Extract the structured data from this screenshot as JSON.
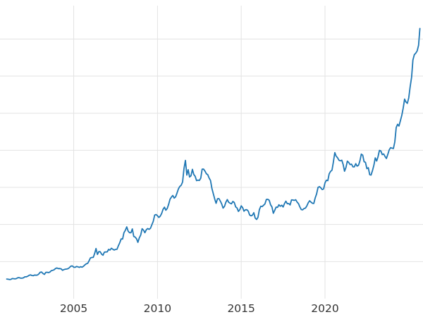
{
  "chart_data": {
    "type": "line",
    "title": "",
    "xlabel": "",
    "ylabel": "",
    "grid": true,
    "legend": "none",
    "x_range": [
      2000.6,
      2025.85
    ],
    "y_range": [
      0,
      3950
    ],
    "x_ticks": [
      {
        "value": 2005,
        "label": "2005"
      },
      {
        "value": 2010,
        "label": "2010"
      },
      {
        "value": 2015,
        "label": "2015"
      },
      {
        "value": 2020,
        "label": "2020"
      }
    ],
    "y_gridlines": [
      500,
      1000,
      1500,
      2000,
      2500,
      3000,
      3500
    ],
    "line_color": "#1f77b4",
    "grid_color": "#e3e3e3",
    "tick_label_color": "#333333",
    "series": [
      {
        "name": "value",
        "x_start": 2001.0,
        "x_step": 0.0833333,
        "values": [
          265,
          262,
          258,
          260,
          272,
          270,
          267,
          272,
          283,
          283,
          276,
          276,
          281,
          295,
          294,
          302,
          314,
          321,
          313,
          310,
          319,
          316,
          319,
          333,
          356,
          359,
          340,
          328,
          355,
          356,
          351,
          360,
          379,
          383,
          390,
          407,
          414,
          405,
          406,
          403,
          383,
          392,
          398,
          400,
          405,
          420,
          439,
          442,
          424,
          423,
          434,
          429,
          422,
          431,
          424,
          437,
          456,
          470,
          477,
          510,
          550,
          555,
          557,
          611,
          676,
          596,
          634,
          632,
          599,
          586,
          628,
          630,
          631,
          665,
          655,
          680,
          667,
          656,
          665,
          666,
          713,
          755,
          806,
          804,
          890,
          922,
          968,
          910,
          889,
          889,
          940,
          839,
          830,
          807,
          760,
          820,
          858,
          943,
          924,
          890,
          929,
          946,
          934,
          950,
          996,
          1043,
          1127,
          1135,
          1118,
          1095,
          1113,
          1149,
          1205,
          1233,
          1193,
          1216,
          1271,
          1342,
          1370,
          1391,
          1356,
          1373,
          1424,
          1480,
          1513,
          1529,
          1573,
          1756,
          1864,
          1666,
          1739,
          1640,
          1656,
          1743,
          1674,
          1650,
          1591,
          1598,
          1594,
          1626,
          1745,
          1747,
          1721,
          1684,
          1671,
          1627,
          1593,
          1485,
          1414,
          1343,
          1286,
          1347,
          1349,
          1316,
          1276,
          1221,
          1244,
          1300,
          1336,
          1299,
          1288,
          1279,
          1311,
          1296,
          1237,
          1223,
          1176,
          1200,
          1251,
          1227,
          1179,
          1198,
          1199,
          1181,
          1128,
          1117,
          1125,
          1159,
          1086,
          1068,
          1097,
          1200,
          1246,
          1242,
          1260,
          1277,
          1337,
          1340,
          1327,
          1266,
          1238,
          1152,
          1192,
          1234,
          1231,
          1266,
          1246,
          1260,
          1236,
          1283,
          1314,
          1280,
          1282,
          1264,
          1331,
          1330,
          1325,
          1334,
          1303,
          1281,
          1238,
          1201,
          1198,
          1215,
          1221,
          1250,
          1292,
          1320,
          1301,
          1286,
          1284,
          1359,
          1413,
          1500,
          1511,
          1495,
          1471,
          1479,
          1561,
          1597,
          1591,
          1683,
          1716,
          1732,
          1843,
          1969,
          1921,
          1900,
          1866,
          1858,
          1867,
          1811,
          1718,
          1768,
          1853,
          1835,
          1807,
          1814,
          1777,
          1777,
          1820,
          1787,
          1797,
          1856,
          1948,
          1934,
          1848,
          1837,
          1753,
          1765,
          1671,
          1666,
          1725,
          1797,
          1898,
          1855,
          1913,
          1999,
          1992,
          1942,
          1951,
          1918,
          1890,
          1946,
          2007,
          2036,
          2029,
          2023,
          2113,
          2307,
          2351,
          2327,
          2398,
          2470,
          2568,
          2690,
          2651,
          2633,
          2708,
          2858,
          2983,
          3218,
          3289,
          3309,
          3339,
          3414,
          3642
        ]
      }
    ]
  }
}
